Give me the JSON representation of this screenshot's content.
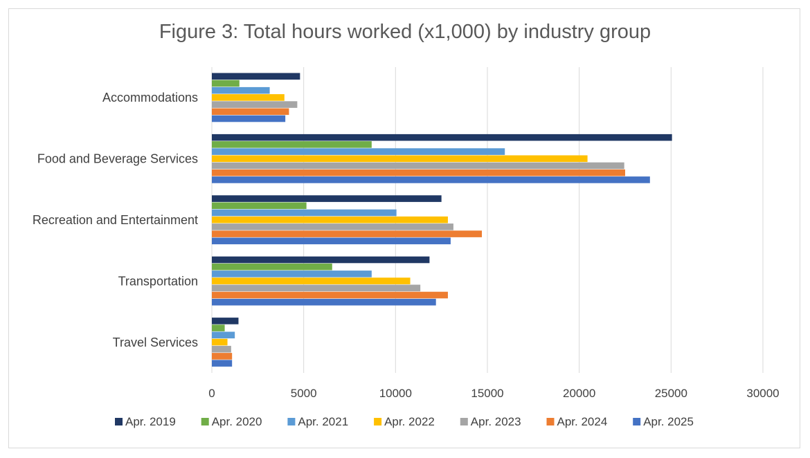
{
  "chart_data": {
    "type": "bar",
    "orientation": "horizontal",
    "title": "Figure 3: Total hours worked (x1,000) by industry group",
    "xlabel": "",
    "ylabel": "",
    "xlim": [
      0,
      30000
    ],
    "xticks": [
      "0",
      "5000",
      "10000",
      "15000",
      "20000",
      "25000",
      "30000"
    ],
    "grid": true,
    "legend_position": "bottom",
    "categories": [
      "Accommodations",
      "Food and Beverage Services",
      "Recreation and Entertainment",
      "Transportation",
      "Travel Services"
    ],
    "series": [
      {
        "name": "Apr. 2019",
        "color": "#203864",
        "values": [
          4800,
          25050,
          12500,
          11850,
          1450
        ]
      },
      {
        "name": "Apr. 2020",
        "color": "#70ad47",
        "values": [
          1500,
          8700,
          5150,
          6550,
          700
        ]
      },
      {
        "name": "Apr. 2021",
        "color": "#5b9bd5",
        "values": [
          3150,
          15950,
          10050,
          8700,
          1250
        ]
      },
      {
        "name": "Apr. 2022",
        "color": "#ffc000",
        "values": [
          3950,
          20450,
          12850,
          10800,
          850
        ]
      },
      {
        "name": "Apr. 2023",
        "color": "#a5a5a5",
        "values": [
          4650,
          22450,
          13150,
          11350,
          1050
        ]
      },
      {
        "name": "Apr. 2024",
        "color": "#ed7d31",
        "values": [
          4200,
          22500,
          14700,
          12850,
          1100
        ]
      },
      {
        "name": "Apr. 2025",
        "color": "#4472c4",
        "values": [
          4000,
          23850,
          13000,
          12200,
          1100
        ]
      }
    ]
  }
}
